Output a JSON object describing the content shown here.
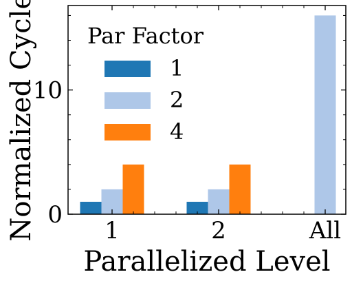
{
  "chart_data": {
    "type": "bar",
    "title": "",
    "xlabel": "Parallelized Level",
    "ylabel": "Normalized Cycles",
    "categories": [
      "1",
      "2",
      "All"
    ],
    "series": [
      {
        "name": "1",
        "color": "#1f77b4",
        "values": [
          1,
          1,
          null
        ]
      },
      {
        "name": "2",
        "color": "#aec7e8",
        "values": [
          2,
          2,
          16
        ]
      },
      {
        "name": "4",
        "color": "#ff7f0e",
        "values": [
          4,
          4,
          null
        ]
      }
    ],
    "ylim": [
      0,
      16.8
    ],
    "yticks": [
      {
        "value": 0,
        "label": "0"
      },
      {
        "value": 10,
        "label": "10"
      }
    ],
    "legend": {
      "title": "Par Factor",
      "placement": "top-left"
    },
    "grid": false
  }
}
